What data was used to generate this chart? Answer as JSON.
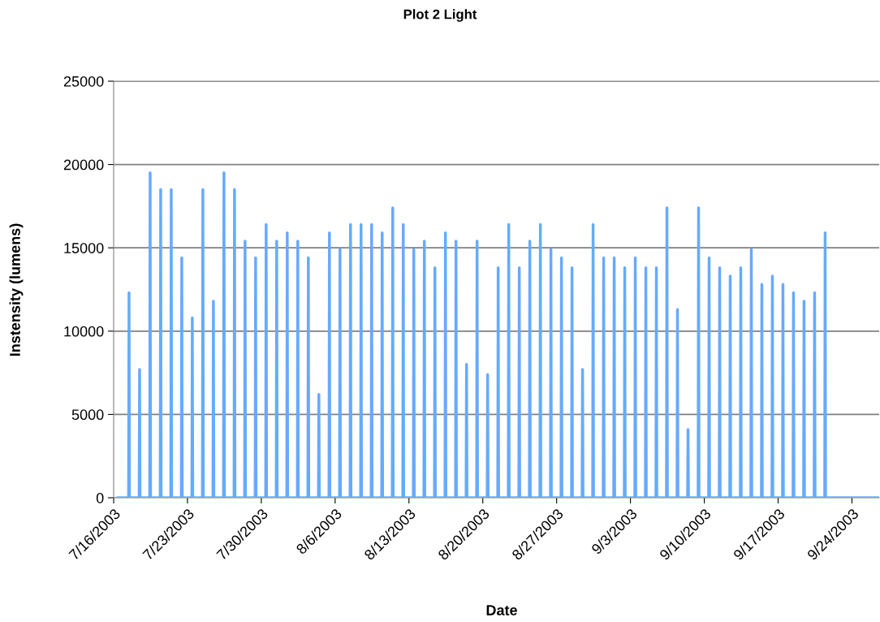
{
  "chart_data": {
    "type": "line",
    "title": "Plot 2 Light",
    "xlabel": "Date",
    "ylabel": "Instensity (lumens)",
    "xlim": [
      "2003-07-16",
      "2003-09-26T14:00"
    ],
    "xticks": [
      {
        "value": "2003-07-16",
        "label": "7/16/2003"
      },
      {
        "value": "2003-07-23",
        "label": "7/23/2003"
      },
      {
        "value": "2003-07-30",
        "label": "7/30/2003"
      },
      {
        "value": "2003-08-06",
        "label": "8/6/2003"
      },
      {
        "value": "2003-08-13",
        "label": "8/13/2003"
      },
      {
        "value": "2003-08-20",
        "label": "8/20/2003"
      },
      {
        "value": "2003-08-27",
        "label": "8/27/2003"
      },
      {
        "value": "2003-09-03",
        "label": "9/3/2003"
      },
      {
        "value": "2003-09-10",
        "label": "9/10/2003"
      },
      {
        "value": "2003-09-17",
        "label": "9/17/2003"
      },
      {
        "value": "2003-09-24",
        "label": "9/24/2003"
      }
    ],
    "ylim": [
      0,
      25000
    ],
    "yticks": [
      0,
      5000,
      10000,
      15000,
      20000,
      25000
    ],
    "grid": "y",
    "marker": "none",
    "line_style": "solid",
    "series": [
      {
        "color": "#66aaff",
        "x": [
          "2003-07-16T10:00",
          "2003-07-17T10:00",
          "2003-07-17T11:00",
          "2003-07-17T12:00",
          "2003-07-18T10:00",
          "2003-07-18T11:00",
          "2003-07-18T12:00",
          "2003-07-19T10:00",
          "2003-07-19T11:00",
          "2003-07-19T12:00",
          "2003-07-20T10:00",
          "2003-07-20T11:00",
          "2003-07-20T12:00",
          "2003-07-21T10:00",
          "2003-07-21T11:00",
          "2003-07-21T12:00",
          "2003-07-22T10:00",
          "2003-07-22T11:00",
          "2003-07-22T12:00",
          "2003-07-23T10:00",
          "2003-07-23T11:00",
          "2003-07-23T12:00",
          "2003-07-24T10:00",
          "2003-07-24T11:00",
          "2003-07-24T12:00",
          "2003-07-25T10:00",
          "2003-07-25T11:00",
          "2003-07-25T12:00",
          "2003-07-26T10:00",
          "2003-07-26T11:00",
          "2003-07-26T12:00",
          "2003-07-27T10:00",
          "2003-07-27T11:00",
          "2003-07-27T12:00",
          "2003-07-28T10:00",
          "2003-07-28T11:00",
          "2003-07-28T12:00",
          "2003-07-29T10:00",
          "2003-07-29T11:00",
          "2003-07-29T12:00",
          "2003-07-30T10:00",
          "2003-07-30T11:00",
          "2003-07-30T12:00",
          "2003-07-31T10:00",
          "2003-07-31T11:00",
          "2003-07-31T12:00",
          "2003-08-01T10:00",
          "2003-08-01T11:00",
          "2003-08-01T12:00",
          "2003-08-02T10:00",
          "2003-08-02T11:00",
          "2003-08-02T12:00",
          "2003-08-03T10:00",
          "2003-08-03T11:00",
          "2003-08-03T12:00",
          "2003-08-04T10:00",
          "2003-08-04T11:00",
          "2003-08-04T12:00",
          "2003-08-05T10:00",
          "2003-08-05T11:00",
          "2003-08-05T12:00",
          "2003-08-06T10:00",
          "2003-08-06T11:00",
          "2003-08-06T12:00",
          "2003-08-07T10:00",
          "2003-08-07T11:00",
          "2003-08-07T12:00",
          "2003-08-08T10:00",
          "2003-08-08T11:00",
          "2003-08-08T12:00",
          "2003-08-09T10:00",
          "2003-08-09T11:00",
          "2003-08-09T12:00",
          "2003-08-10T10:00",
          "2003-08-10T11:00",
          "2003-08-10T12:00",
          "2003-08-11T10:00",
          "2003-08-11T11:00",
          "2003-08-11T12:00",
          "2003-08-12T10:00",
          "2003-08-12T11:00",
          "2003-08-12T12:00",
          "2003-08-13T10:00",
          "2003-08-13T11:00",
          "2003-08-13T12:00",
          "2003-08-14T10:00",
          "2003-08-14T11:00",
          "2003-08-14T12:00",
          "2003-08-15T10:00",
          "2003-08-15T11:00",
          "2003-08-15T12:00",
          "2003-08-16T10:00",
          "2003-08-16T11:00",
          "2003-08-16T12:00",
          "2003-08-17T10:00",
          "2003-08-17T11:00",
          "2003-08-17T12:00",
          "2003-08-18T10:00",
          "2003-08-18T11:00",
          "2003-08-18T12:00",
          "2003-08-19T10:00",
          "2003-08-19T11:00",
          "2003-08-19T12:00",
          "2003-08-20T10:00",
          "2003-08-20T11:00",
          "2003-08-20T12:00",
          "2003-08-21T10:00",
          "2003-08-21T11:00",
          "2003-08-21T12:00",
          "2003-08-22T10:00",
          "2003-08-22T11:00",
          "2003-08-22T12:00",
          "2003-08-23T10:00",
          "2003-08-23T11:00",
          "2003-08-23T12:00",
          "2003-08-24T10:00",
          "2003-08-24T11:00",
          "2003-08-24T12:00",
          "2003-08-25T10:00",
          "2003-08-25T11:00",
          "2003-08-25T12:00",
          "2003-08-26T10:00",
          "2003-08-26T11:00",
          "2003-08-26T12:00",
          "2003-08-27T10:00",
          "2003-08-27T11:00",
          "2003-08-27T12:00",
          "2003-08-28T10:00",
          "2003-08-28T11:00",
          "2003-08-28T12:00",
          "2003-08-29T10:00",
          "2003-08-29T11:00",
          "2003-08-29T12:00",
          "2003-08-30T10:00",
          "2003-08-30T11:00",
          "2003-08-30T12:00",
          "2003-08-31T10:00",
          "2003-08-31T11:00",
          "2003-08-31T12:00",
          "2003-09-01T10:00",
          "2003-09-01T11:00",
          "2003-09-01T12:00",
          "2003-09-02T10:00",
          "2003-09-02T11:00",
          "2003-09-02T12:00",
          "2003-09-03T10:00",
          "2003-09-03T11:00",
          "2003-09-03T12:00",
          "2003-09-04T10:00",
          "2003-09-04T11:00",
          "2003-09-04T12:00",
          "2003-09-05T10:00",
          "2003-09-05T11:00",
          "2003-09-05T12:00",
          "2003-09-06T10:00",
          "2003-09-06T11:00",
          "2003-09-06T12:00",
          "2003-09-07T10:00",
          "2003-09-07T11:00",
          "2003-09-07T12:00",
          "2003-09-08T10:00",
          "2003-09-08T11:00",
          "2003-09-08T12:00",
          "2003-09-09T10:00",
          "2003-09-09T11:00",
          "2003-09-09T12:00",
          "2003-09-10T10:00",
          "2003-09-10T11:00",
          "2003-09-10T12:00",
          "2003-09-11T10:00",
          "2003-09-11T11:00",
          "2003-09-11T12:00",
          "2003-09-12T10:00",
          "2003-09-12T11:00",
          "2003-09-12T12:00",
          "2003-09-13T10:00",
          "2003-09-13T11:00",
          "2003-09-13T12:00",
          "2003-09-14T10:00",
          "2003-09-14T11:00",
          "2003-09-14T12:00",
          "2003-09-15T10:00",
          "2003-09-15T11:00",
          "2003-09-15T12:00",
          "2003-09-16T10:00",
          "2003-09-16T11:00",
          "2003-09-16T12:00",
          "2003-09-17T10:00",
          "2003-09-17T11:00",
          "2003-09-17T12:00",
          "2003-09-18T10:00",
          "2003-09-18T11:00",
          "2003-09-18T12:00",
          "2003-09-19T10:00",
          "2003-09-19T11:00",
          "2003-09-19T12:00",
          "2003-09-20T10:00",
          "2003-09-20T11:00",
          "2003-09-20T12:00",
          "2003-09-21T10:00",
          "2003-09-21T11:00",
          "2003-09-21T12:00",
          "2003-09-26T14:00"
        ],
        "values": [
          0,
          0,
          12300,
          0,
          0,
          7700,
          0,
          0,
          19500,
          0,
          0,
          18500,
          0,
          0,
          18500,
          0,
          0,
          14400,
          0,
          0,
          10800,
          0,
          0,
          18500,
          0,
          0,
          11800,
          0,
          0,
          19500,
          0,
          0,
          18500,
          0,
          0,
          15400,
          0,
          0,
          14400,
          0,
          0,
          16400,
          0,
          0,
          15400,
          0,
          0,
          15900,
          0,
          0,
          15400,
          0,
          0,
          14400,
          0,
          0,
          6200,
          0,
          0,
          15900,
          0,
          0,
          14900,
          0,
          0,
          16400,
          0,
          0,
          16400,
          0,
          0,
          16400,
          0,
          0,
          15900,
          0,
          0,
          17400,
          0,
          0,
          16400,
          0,
          0,
          14900,
          0,
          0,
          15400,
          0,
          0,
          13800,
          0,
          0,
          15900,
          0,
          0,
          15400,
          0,
          0,
          8000,
          0,
          0,
          15400,
          0,
          0,
          7400,
          0,
          0,
          13800,
          0,
          0,
          16400,
          0,
          0,
          13800,
          0,
          0,
          15400,
          0,
          0,
          16400,
          0,
          0,
          14900,
          0,
          0,
          14400,
          0,
          0,
          13800,
          0,
          0,
          7700,
          0,
          0,
          16400,
          0,
          0,
          14400,
          0,
          0,
          14400,
          0,
          0,
          13800,
          0,
          0,
          14400,
          0,
          0,
          13800,
          0,
          0,
          13800,
          0,
          0,
          17400,
          0,
          0,
          11300,
          0,
          0,
          4100,
          0,
          0,
          17400,
          0,
          0,
          14400,
          0,
          0,
          13800,
          0,
          0,
          13300,
          0,
          0,
          13800,
          0,
          0,
          14900,
          0,
          0,
          12800,
          0,
          0,
          13300,
          0,
          0,
          12800,
          0,
          0,
          12300,
          0,
          0,
          11800,
          0,
          0,
          12300,
          0,
          0,
          15900,
          0,
          0
        ]
      }
    ]
  }
}
